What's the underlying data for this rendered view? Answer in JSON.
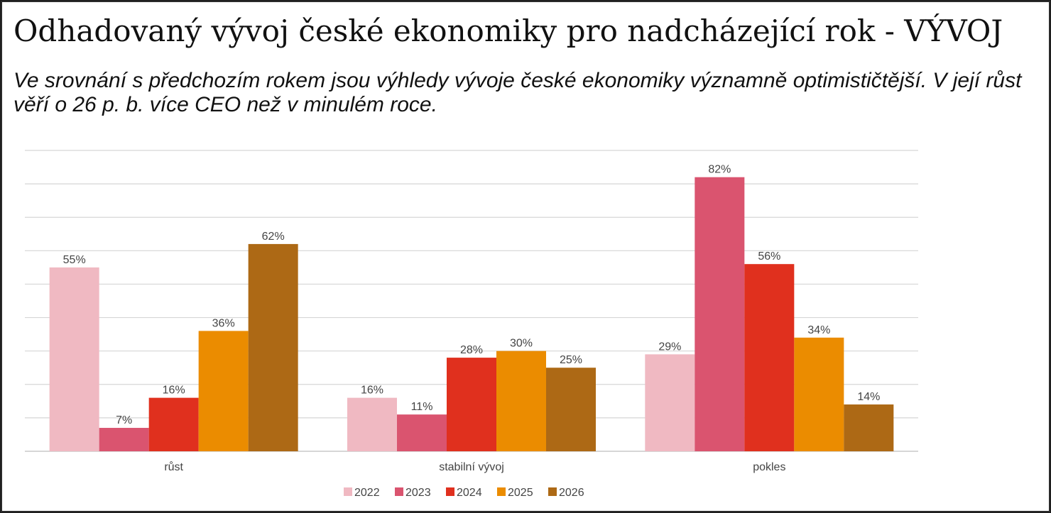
{
  "title": "Odhadovaný vývoj české ekonomiky pro nadcházející rok - VÝVOJ",
  "subtitle": "Ve srovnání s předchozím rokem jsou výhledy vývoje české ekonomiky významně optimističtější. V její růst věří o 26 p. b. více CEO než v minulém roce.",
  "chart_data": {
    "type": "bar",
    "categories": [
      "růst",
      "stabilní vývoj",
      "pokles"
    ],
    "series": [
      {
        "name": "2022",
        "color": "#F0B9C2",
        "values": [
          55,
          16,
          29
        ],
        "labels": [
          "55%",
          "16%",
          "29%"
        ]
      },
      {
        "name": "2023",
        "color": "#DA546F",
        "values": [
          7,
          11,
          82
        ],
        "labels": [
          "7%",
          "11%",
          "82%"
        ]
      },
      {
        "name": "2024",
        "color": "#E0301E",
        "values": [
          16,
          28,
          56
        ],
        "labels": [
          "16%",
          "28%",
          "56%"
        ]
      },
      {
        "name": "2025",
        "color": "#EB8C00",
        "values": [
          36,
          30,
          34
        ],
        "labels": [
          "36%",
          "30%",
          "34%"
        ]
      },
      {
        "name": "2026",
        "color": "#AD6915",
        "values": [
          62,
          25,
          14
        ],
        "labels": [
          "62%",
          "25%",
          "14%"
        ]
      }
    ],
    "ylim": [
      0,
      90
    ],
    "grid": true,
    "legend": "bottom",
    "xlabel": "",
    "ylabel": ""
  }
}
